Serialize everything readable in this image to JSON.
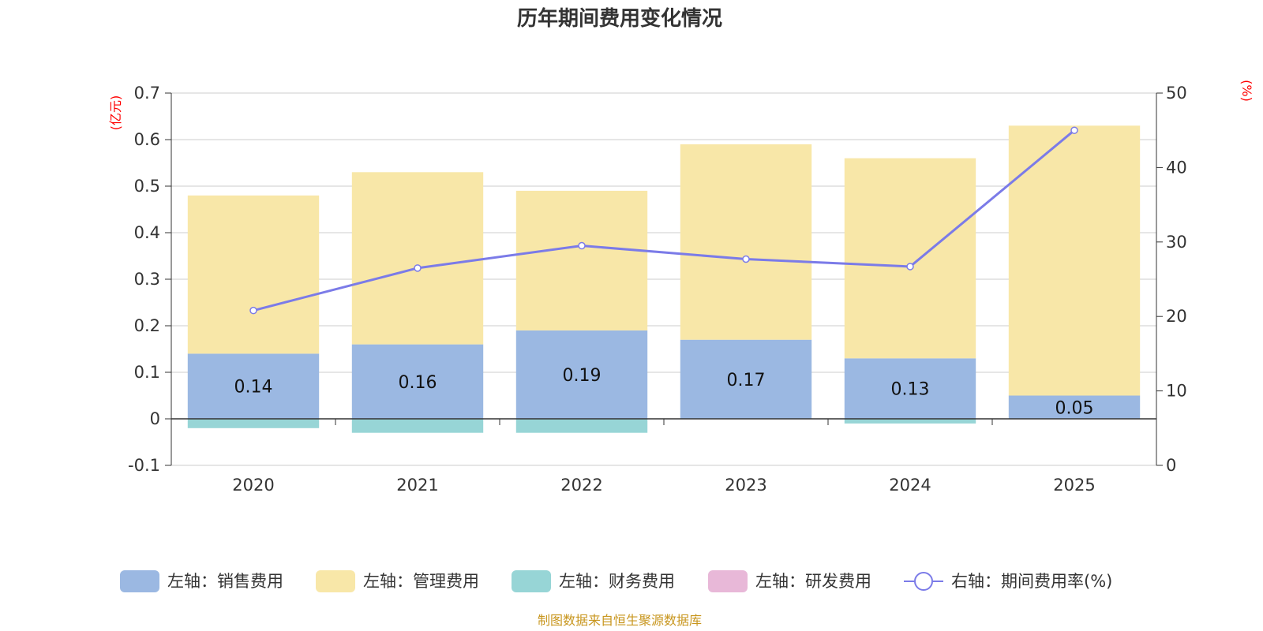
{
  "chart_data": {
    "type": "bar",
    "title": "历年期间费用变化情况",
    "categories": [
      "2020",
      "2021",
      "2022",
      "2023",
      "2024",
      "2025"
    ],
    "left_axis": {
      "unit": "(亿元)",
      "ylim": [
        -0.1,
        0.7
      ],
      "ticks": [
        "0.7",
        "0.6",
        "0.5",
        "0.4",
        "0.3",
        "0.2",
        "0.1",
        "0",
        "-0.1"
      ],
      "tick_values": [
        0.7,
        0.6,
        0.5,
        0.4,
        0.3,
        0.2,
        0.1,
        0,
        -0.1
      ]
    },
    "right_axis": {
      "unit": "(%)",
      "ylim": [
        0,
        50
      ],
      "ticks": [
        "50",
        "40",
        "30",
        "20",
        "10",
        "0"
      ],
      "tick_values": [
        50,
        40,
        30,
        20,
        10,
        0
      ]
    },
    "series": [
      {
        "name": "左轴：销售费用",
        "color": "#9bb8e2",
        "values": [
          0.14,
          0.16,
          0.19,
          0.17,
          0.13,
          0.05
        ],
        "labels": [
          "0.14",
          "0.16",
          "0.19",
          "0.17",
          "0.13",
          "0.05"
        ]
      },
      {
        "name": "左轴：管理费用",
        "color": "#f8e7a8",
        "values": [
          0.34,
          0.37,
          0.3,
          0.42,
          0.43,
          0.58
        ]
      },
      {
        "name": "左轴：财务费用",
        "color": "#97d5d6",
        "values": [
          -0.02,
          -0.03,
          -0.03,
          0,
          -0.01,
          0
        ]
      },
      {
        "name": "左轴：研发费用",
        "color": "#e8b8d8",
        "values": [
          0,
          0,
          0,
          0,
          0,
          0
        ]
      },
      {
        "name": "右轴：期间费用率(%)",
        "color": "#7b7be8",
        "type": "line",
        "values": [
          20.8,
          26.5,
          29.5,
          27.7,
          26.7,
          45.0
        ]
      }
    ],
    "source": "制图数据来自恒生聚源数据库"
  }
}
